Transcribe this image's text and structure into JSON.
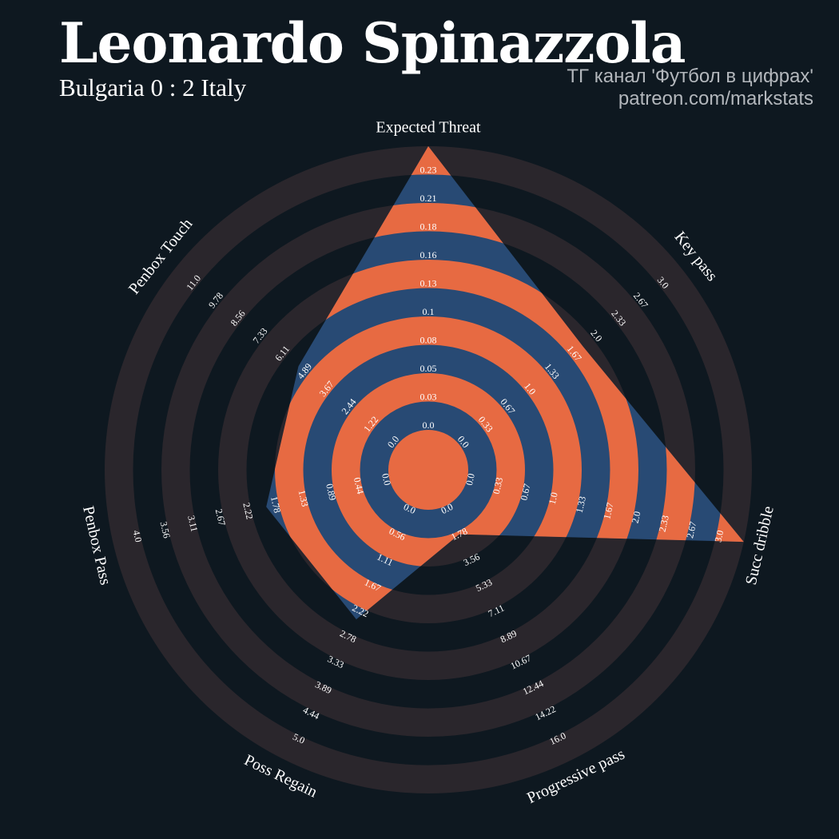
{
  "header": {
    "title": "Leonardo Spinazzola",
    "subtitle": "Bulgaria 0 : 2 Italy",
    "credit_line1": "ТГ канал 'Футбол в цифрах'",
    "credit_line2": "patreon.com/markstats"
  },
  "colors": {
    "background": "#0e1820",
    "ring_band": "#2a262c",
    "player_fill": "#284a74",
    "player_stripe": "#e76a42",
    "text": "#ffffff",
    "credit_text": "#b3b7bc"
  },
  "chart_data": {
    "type": "radar",
    "title": "Leonardo Spinazzola",
    "subtitle": "Bulgaria 0 : 2 Italy",
    "grid": "alternating ring bands",
    "parameters": [
      {
        "name": "Expected Threat",
        "ticks": [
          "0.0",
          "0.03",
          "0.05",
          "0.08",
          "0.1",
          "0.13",
          "0.16",
          "0.18",
          "0.21",
          "0.23"
        ],
        "value": 0.23
      },
      {
        "name": "Key pass",
        "ticks": [
          "0.0",
          "0.33",
          "0.67",
          "1.0",
          "1.33",
          "1.67",
          "2.0",
          "2.33",
          "2.67",
          "3.0"
        ],
        "value": 1.67
      },
      {
        "name": "Succ dribble",
        "ticks": [
          "0.0",
          "0.33",
          "0.67",
          "1.0",
          "1.33",
          "1.67",
          "2.0",
          "2.33",
          "2.67",
          "3.0"
        ],
        "value": 3.0
      },
      {
        "name": "Progressive pass",
        "ticks": [
          "0.0",
          "1.78",
          "3.56",
          "5.33",
          "7.11",
          "8.89",
          "10.67",
          "12.44",
          "14.22",
          "16.0"
        ],
        "value": 1.78
      },
      {
        "name": "Poss Regain",
        "ticks": [
          "0.0",
          "0.56",
          "1.11",
          "1.67",
          "2.22",
          "2.78",
          "3.33",
          "3.89",
          "4.44",
          "5.0"
        ],
        "value": 2.22
      },
      {
        "name": "Penbox Pass",
        "ticks": [
          "0.0",
          "0.44",
          "0.89",
          "1.33",
          "1.78",
          "2.22",
          "2.67",
          "3.11",
          "3.56",
          "4.0"
        ],
        "value": 1.78
      },
      {
        "name": "Penbox Touch",
        "ticks": [
          "0.0",
          "1.22",
          "2.44",
          "3.67",
          "4.89",
          "6.11",
          "7.33",
          "8.56",
          "9.78",
          "11.0"
        ],
        "value": 4.89
      }
    ]
  }
}
